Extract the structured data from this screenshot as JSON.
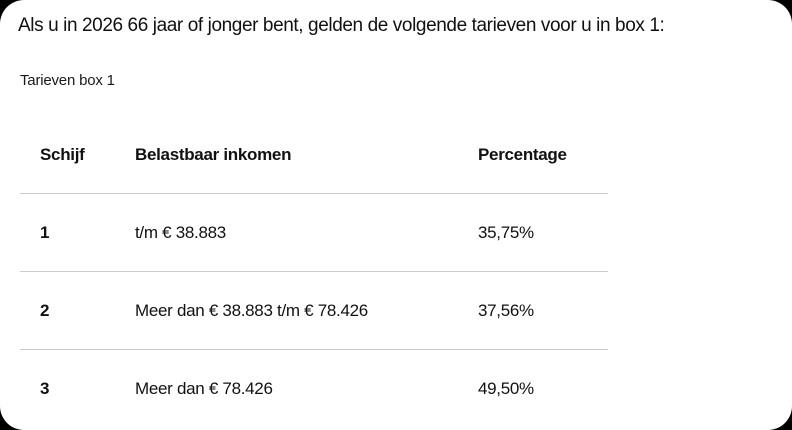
{
  "colors": {
    "page_background": "#000000",
    "card_background": "#ffffff",
    "text": "#111111",
    "divider": "#cccccc"
  },
  "card": {
    "intro": "Als u in 2026 66 jaar of jonger bent, gelden de volgende tarieven voor u in box 1:",
    "table": {
      "caption": "Tarieven box 1",
      "columns": [
        "Schijf",
        "Belastbaar inkomen",
        "Percentage"
      ],
      "rows": [
        {
          "schijf": "1",
          "inkomen": "t/m € 38.883",
          "percentage": "35,75%"
        },
        {
          "schijf": "2",
          "inkomen": "Meer dan € 38.883 t/m € 78.426",
          "percentage": "37,56%"
        },
        {
          "schijf": "3",
          "inkomen": "Meer dan € 78.426",
          "percentage": "49,50%"
        }
      ]
    }
  }
}
